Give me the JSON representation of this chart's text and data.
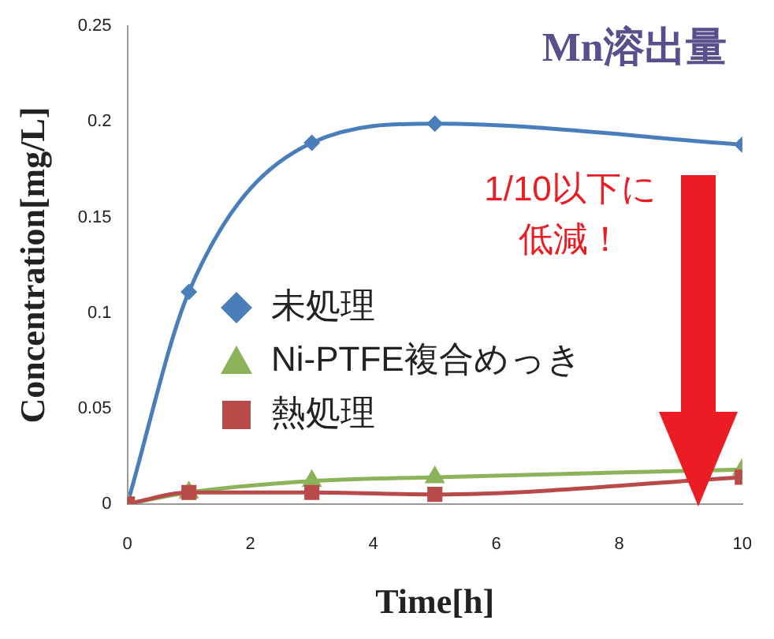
{
  "chart_data": {
    "type": "line",
    "title": "Mn溶出量",
    "xlabel": "Time[h]",
    "ylabel": "Concentration[mg/L]",
    "x": [
      0,
      1,
      3,
      5,
      10
    ],
    "series": [
      {
        "name": "未処理",
        "color": "#4a7ebb",
        "values": [
          0,
          0.111,
          0.189,
          0.199,
          0.188
        ],
        "marker": "diamond"
      },
      {
        "name": "Ni-PTFE複合めっき",
        "color": "#8cb35a",
        "values": [
          0,
          0.006,
          0.012,
          0.014,
          0.018
        ],
        "marker": "triangle"
      },
      {
        "name": "熱処理",
        "color": "#b84a4a",
        "values": [
          0,
          0.006,
          0.006,
          0.005,
          0.014
        ],
        "marker": "square"
      }
    ],
    "xlim": [
      0,
      10
    ],
    "xticks": [
      0,
      2,
      4,
      6,
      8,
      10
    ],
    "ylim": [
      0,
      0.25
    ],
    "yticks": [
      0,
      0.05,
      0.1,
      0.15,
      0.2,
      0.25
    ],
    "grid": false,
    "legend": "left",
    "annotations": [
      "1/10以下に低減！"
    ]
  }
}
